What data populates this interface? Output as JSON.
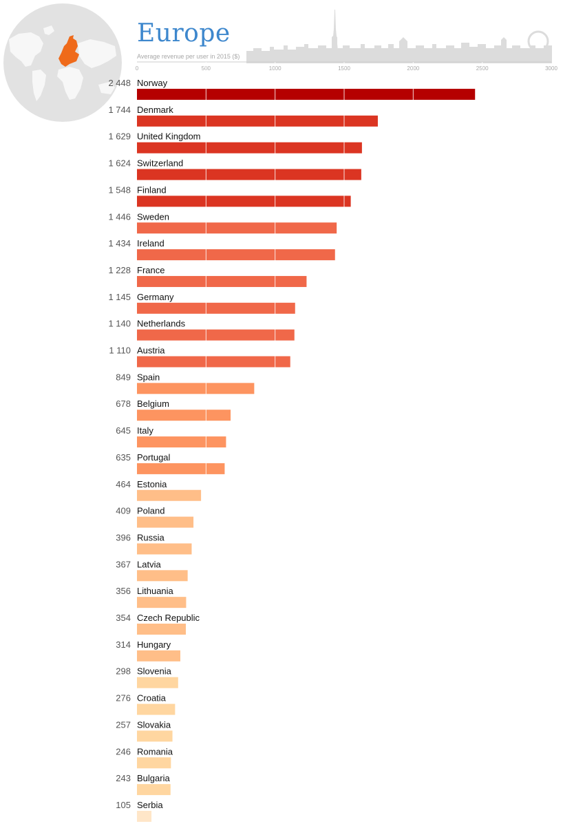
{
  "chart_data": {
    "type": "bar",
    "title": "Europe",
    "subtitle": "Average revenue per user in 2015 ($)",
    "xlim": [
      0,
      3000
    ],
    "ticks": [
      0,
      500,
      1000,
      1500,
      2000,
      2500,
      3000
    ],
    "tick_labels": [
      "0",
      "500",
      "1000",
      "1500",
      "2000",
      "2500",
      "3000"
    ],
    "grid": true,
    "categories": [
      "Norway",
      "Denmark",
      "United Kingdom",
      "Switzerland",
      "Finland",
      "Sweden",
      "Ireland",
      "France",
      "Germany",
      "Netherlands",
      "Austria",
      "Spain",
      "Belgium",
      "Italy",
      "Portugal",
      "Estonia",
      "Poland",
      "Russia",
      "Latvia",
      "Lithuania",
      "Czech Republic",
      "Hungary",
      "Slovenia",
      "Croatia",
      "Slovakia",
      "Romania",
      "Bulgaria",
      "Serbia"
    ],
    "values": [
      2448,
      1744,
      1629,
      1624,
      1548,
      1446,
      1434,
      1228,
      1145,
      1140,
      1110,
      849,
      678,
      645,
      635,
      464,
      409,
      396,
      367,
      356,
      354,
      314,
      298,
      276,
      257,
      246,
      243,
      105
    ],
    "value_labels": [
      "2 448",
      "1 744",
      "1 629",
      "1 624",
      "1 548",
      "1 446",
      "1 434",
      "1 228",
      "1 145",
      "1 140",
      "1 110",
      "849",
      "678",
      "645",
      "635",
      "464",
      "409",
      "396",
      "367",
      "356",
      "354",
      "314",
      "298",
      "276",
      "257",
      "246",
      "243",
      "105"
    ],
    "colors": [
      "#b50000",
      "#db3522",
      "#db3522",
      "#db3522",
      "#db3522",
      "#f06849",
      "#f06849",
      "#f06849",
      "#f06849",
      "#f06849",
      "#f06849",
      "#fd9460",
      "#fd9460",
      "#fd9460",
      "#fd9460",
      "#ffbe88",
      "#ffbe88",
      "#ffbe88",
      "#ffbe88",
      "#ffbe88",
      "#ffbe88",
      "#ffbe88",
      "#ffd6a0",
      "#ffd6a0",
      "#ffd6a0",
      "#ffd6a0",
      "#ffd6a0",
      "#ffe6c8"
    ]
  },
  "colors": {
    "title": "#3d87cd",
    "globe_fill": "#e2e2e2",
    "map_land": "#f7f7f7",
    "map_highlight": "#ef6a1a",
    "skyline": "#dcdcdc"
  },
  "icons": {
    "globe": "world-map-europe-icon",
    "skyline": "european-city-skyline-illustration"
  }
}
